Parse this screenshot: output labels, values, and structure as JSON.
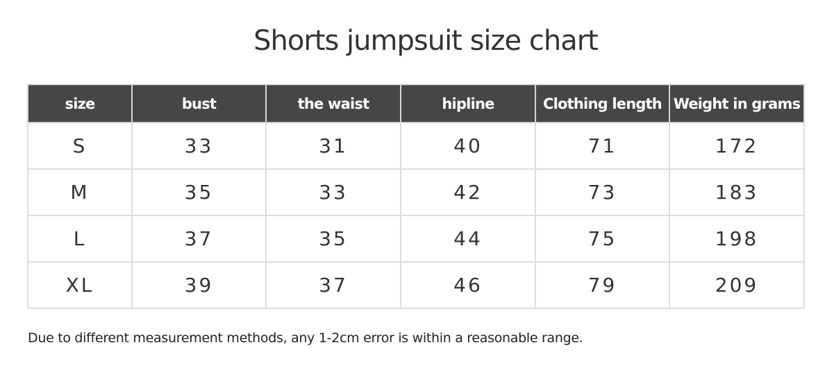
{
  "title": "Shorts jumpsuit size chart",
  "table": {
    "headers": [
      "size",
      "bust",
      "the waist",
      "hipline",
      "Clothing length",
      "Weight in grams"
    ],
    "rows": [
      [
        "S",
        "33",
        "31",
        "40",
        "71",
        "172"
      ],
      [
        "M",
        "35",
        "33",
        "42",
        "73",
        "183"
      ],
      [
        "L",
        "37",
        "35",
        "44",
        "75",
        "198"
      ],
      [
        "XL",
        "39",
        "37",
        "46",
        "79",
        "209"
      ]
    ]
  },
  "note": "Due to different measurement methods, any 1-2cm error is within a reasonable range.",
  "colors": {
    "header_bg": "#464646",
    "header_text": "#ffffff",
    "border": "#dcdcdc"
  }
}
